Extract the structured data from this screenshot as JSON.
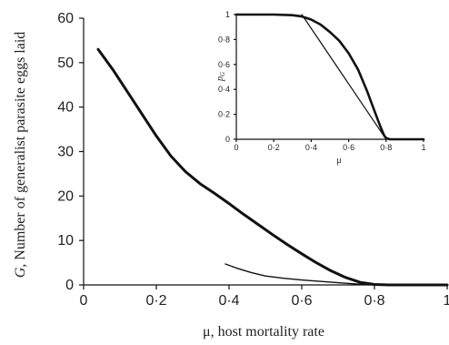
{
  "chart_data": [
    {
      "type": "line",
      "xlabel": "μ, host mortality rate",
      "ylabel_italic": "G",
      "ylabel_rest": ", Number of generalist parasite eggs laid",
      "xlim": [
        0,
        1
      ],
      "ylim": [
        0,
        60
      ],
      "xticks": [
        0,
        0.2,
        0.4,
        0.6,
        0.8,
        1
      ],
      "xtick_labels": [
        "0",
        "0·2",
        "0·4",
        "0·6",
        "0·8",
        "1"
      ],
      "yticks": [
        0,
        10,
        20,
        30,
        40,
        50,
        60
      ],
      "ytick_labels": [
        "0",
        "10",
        "20",
        "30",
        "40",
        "50",
        "60"
      ],
      "series": [
        {
          "style": "thick",
          "x": [
            0.04,
            0.08,
            0.12,
            0.16,
            0.2,
            0.24,
            0.28,
            0.32,
            0.36,
            0.4,
            0.44,
            0.48,
            0.52,
            0.56,
            0.6,
            0.64,
            0.68,
            0.72,
            0.76,
            0.8,
            0.84,
            0.9,
            1.0
          ],
          "y": [
            53,
            48.5,
            43.5,
            38.5,
            33.5,
            29,
            25.5,
            22.8,
            20.6,
            18.3,
            15.9,
            13.6,
            11.3,
            9.1,
            7.0,
            5.0,
            3.2,
            1.7,
            0.6,
            0.1,
            0,
            0,
            0
          ]
        },
        {
          "style": "thin",
          "x": [
            0.39,
            0.42,
            0.46,
            0.5,
            0.55,
            0.6,
            0.65,
            0.7,
            0.75,
            0.8
          ],
          "y": [
            4.7,
            3.8,
            2.8,
            2.0,
            1.5,
            1.1,
            0.8,
            0.5,
            0.2,
            0
          ]
        }
      ]
    },
    {
      "type": "line",
      "inset": true,
      "xlabel": "μ",
      "ylabel": "p",
      "ylabel_sub": "G",
      "xlim": [
        0,
        1
      ],
      "ylim": [
        0,
        1
      ],
      "xticks": [
        0,
        0.2,
        0.4,
        0.6,
        0.8,
        1
      ],
      "xtick_labels": [
        "0",
        "0·2",
        "0·4",
        "0·6",
        "0·8",
        "1"
      ],
      "yticks": [
        0,
        0.2,
        0.4,
        0.6,
        0.8,
        1
      ],
      "ytick_labels": [
        "0",
        "0·2",
        "0·4",
        "0·6",
        "0·8",
        "1"
      ],
      "series": [
        {
          "style": "thick",
          "x": [
            0.0,
            0.1,
            0.2,
            0.3,
            0.35,
            0.4,
            0.45,
            0.5,
            0.55,
            0.6,
            0.65,
            0.7,
            0.74,
            0.77,
            0.79,
            0.8,
            0.82,
            0.9,
            1.0
          ],
          "y": [
            1.0,
            1.0,
            1.0,
            0.995,
            0.985,
            0.96,
            0.92,
            0.86,
            0.79,
            0.69,
            0.56,
            0.38,
            0.22,
            0.1,
            0.03,
            0.01,
            0.0,
            0.0,
            0.0
          ]
        },
        {
          "style": "thin",
          "x": [
            0.35,
            0.8
          ],
          "y": [
            1.0,
            0.0
          ]
        }
      ]
    }
  ]
}
